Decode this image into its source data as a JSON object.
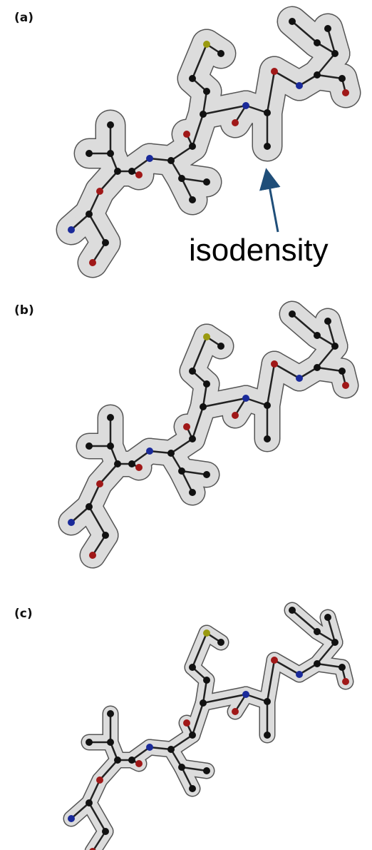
{
  "panels": [
    {
      "label": "(a)"
    },
    {
      "label": "(b)"
    },
    {
      "label": "(c)"
    }
  ],
  "annotation": "isodensity"
}
